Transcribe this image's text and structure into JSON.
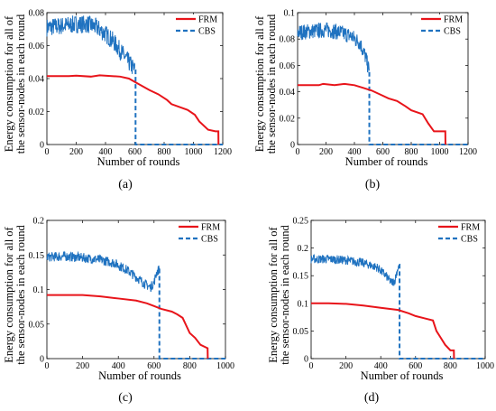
{
  "chart_data": [
    {
      "type": "line",
      "panel_label": "(a)",
      "xlabel": "Number of rounds",
      "ylabel_lines": [
        "Energy consumption for all of",
        "the sensor-nodes in each round"
      ],
      "xlim": [
        0,
        1200
      ],
      "ylim": [
        0,
        0.08
      ],
      "xticks": [
        0,
        200,
        400,
        600,
        800,
        1000,
        1200
      ],
      "xtick_labels": [
        "0",
        "200",
        "400",
        "600",
        "800",
        "1000",
        "1200"
      ],
      "yticks": [
        0,
        0.02,
        0.04,
        0.06,
        0.08
      ],
      "ytick_labels": [
        "0",
        "0.02",
        "0.04",
        "0.06",
        "0.08"
      ],
      "legend_position": "top-right",
      "series": [
        {
          "name": "FRM",
          "color": "#e8141a",
          "style": "solid",
          "x": [
            0,
            150,
            200,
            300,
            360,
            500,
            560,
            620,
            700,
            760,
            820,
            850,
            960,
            1010,
            1040,
            1100,
            1150,
            1170,
            1171
          ],
          "y": [
            0.0415,
            0.0415,
            0.0418,
            0.0412,
            0.042,
            0.0412,
            0.04,
            0.037,
            0.033,
            0.0305,
            0.027,
            0.0245,
            0.021,
            0.018,
            0.014,
            0.009,
            0.008,
            0.008,
            0
          ]
        },
        {
          "name": "CBS",
          "color": "#1f72c0",
          "style": "dashed",
          "noisy_x": [
            0,
            100,
            200,
            280,
            340,
            400,
            450,
            500,
            550,
            600
          ],
          "noisy_y": [
            0.071,
            0.072,
            0.073,
            0.073,
            0.071,
            0.067,
            0.063,
            0.057,
            0.051,
            0.045
          ],
          "noise_amplitude": 0.0055,
          "drop_x": 605,
          "tail_end_x": 1200
        }
      ]
    },
    {
      "type": "line",
      "panel_label": "(b)",
      "xlabel": "Number of rounds",
      "ylabel_lines": [
        "Energy consumption for all of",
        "the sensor-nodes in each round"
      ],
      "xlim": [
        0,
        1200
      ],
      "ylim": [
        0,
        0.1
      ],
      "xticks": [
        0,
        200,
        400,
        600,
        800,
        1000,
        1200
      ],
      "xtick_labels": [
        "0",
        "200",
        "400",
        "600",
        "800",
        "1000",
        "1200"
      ],
      "yticks": [
        0,
        0.02,
        0.04,
        0.06,
        0.08,
        0.1
      ],
      "ytick_labels": [
        "0",
        "0.02",
        "0.04",
        "0.06",
        "0.08",
        "0.1"
      ],
      "legend_position": "top-right",
      "series": [
        {
          "name": "FRM",
          "color": "#e8141a",
          "style": "solid",
          "x": [
            0,
            150,
            180,
            260,
            330,
            400,
            460,
            520,
            580,
            640,
            700,
            760,
            800,
            880,
            920,
            960,
            1040,
            1041
          ],
          "y": [
            0.045,
            0.045,
            0.046,
            0.045,
            0.046,
            0.045,
            0.043,
            0.041,
            0.038,
            0.035,
            0.033,
            0.029,
            0.026,
            0.023,
            0.016,
            0.01,
            0.01,
            0
          ]
        },
        {
          "name": "CBS",
          "color": "#1f72c0",
          "style": "dashed",
          "noisy_x": [
            0,
            100,
            200,
            300,
            380,
            440,
            480,
            505
          ],
          "noisy_y": [
            0.085,
            0.086,
            0.087,
            0.085,
            0.082,
            0.077,
            0.066,
            0.055
          ],
          "noise_amplitude": 0.006,
          "drop_x": 505,
          "tail_end_x": 1200
        }
      ]
    },
    {
      "type": "line",
      "panel_label": "(c)",
      "xlabel": "Number of rounds",
      "ylabel_lines": [
        "Energy consumption for all of",
        "the sensor-nodes in each round"
      ],
      "xlim": [
        0,
        1000
      ],
      "ylim": [
        0,
        0.2
      ],
      "xticks": [
        0,
        200,
        400,
        600,
        800,
        1000
      ],
      "xtick_labels": [
        "0",
        "200",
        "400",
        "600",
        "800",
        "1000"
      ],
      "yticks": [
        0,
        0.05,
        0.1,
        0.15,
        0.2
      ],
      "ytick_labels": [
        "0",
        "0.05",
        "0.1",
        "0.15",
        "0.2"
      ],
      "legend_position": "top-right",
      "series": [
        {
          "name": "FRM",
          "color": "#e8141a",
          "style": "solid",
          "x": [
            0,
            100,
            200,
            300,
            400,
            500,
            560,
            600,
            640,
            700,
            730,
            760,
            800,
            830,
            860,
            900,
            901
          ],
          "y": [
            0.092,
            0.092,
            0.092,
            0.09,
            0.087,
            0.084,
            0.08,
            0.076,
            0.072,
            0.068,
            0.064,
            0.059,
            0.037,
            0.03,
            0.02,
            0.015,
            0
          ]
        },
        {
          "name": "CBS",
          "color": "#1f72c0",
          "style": "dashed",
          "noisy_x": [
            0,
            100,
            200,
            300,
            380,
            450,
            500,
            550,
            580,
            600,
            615,
            630
          ],
          "noisy_y": [
            0.147,
            0.148,
            0.146,
            0.143,
            0.138,
            0.128,
            0.118,
            0.108,
            0.103,
            0.11,
            0.125,
            0.13
          ],
          "noise_amplitude": 0.007,
          "drop_x": 630,
          "tail_end_x": 1000
        }
      ]
    },
    {
      "type": "line",
      "panel_label": "(d)",
      "xlabel": "Number of rounds",
      "ylabel_lines": [
        "Energy consumption for all of",
        "the sensor-nodes in each round"
      ],
      "xlim": [
        0,
        1000
      ],
      "ylim": [
        0,
        0.25
      ],
      "xticks": [
        0,
        200,
        400,
        600,
        800,
        1000
      ],
      "xtick_labels": [
        "0",
        "200",
        "400",
        "600",
        "800",
        "1000"
      ],
      "yticks": [
        0,
        0.05,
        0.1,
        0.15,
        0.2,
        0.25
      ],
      "ytick_labels": [
        "0",
        "0.05",
        "0.1",
        "0.15",
        "0.2",
        "0.25"
      ],
      "legend_position": "top-right",
      "series": [
        {
          "name": "FRM",
          "color": "#e8141a",
          "style": "solid",
          "x": [
            0,
            100,
            200,
            300,
            400,
            500,
            560,
            600,
            650,
            700,
            720,
            740,
            770,
            800,
            820,
            821
          ],
          "y": [
            0.1,
            0.1,
            0.099,
            0.096,
            0.092,
            0.088,
            0.082,
            0.077,
            0.073,
            0.069,
            0.05,
            0.04,
            0.025,
            0.015,
            0.015,
            0
          ]
        },
        {
          "name": "CBS",
          "color": "#1f72c0",
          "style": "dashed",
          "noisy_x": [
            0,
            100,
            200,
            300,
            380,
            430,
            460,
            480,
            495,
            505
          ],
          "noisy_y": [
            0.18,
            0.18,
            0.178,
            0.173,
            0.165,
            0.15,
            0.138,
            0.14,
            0.16,
            0.17
          ],
          "noise_amplitude": 0.008,
          "drop_x": 508,
          "tail_end_x": 1000
        }
      ]
    }
  ]
}
